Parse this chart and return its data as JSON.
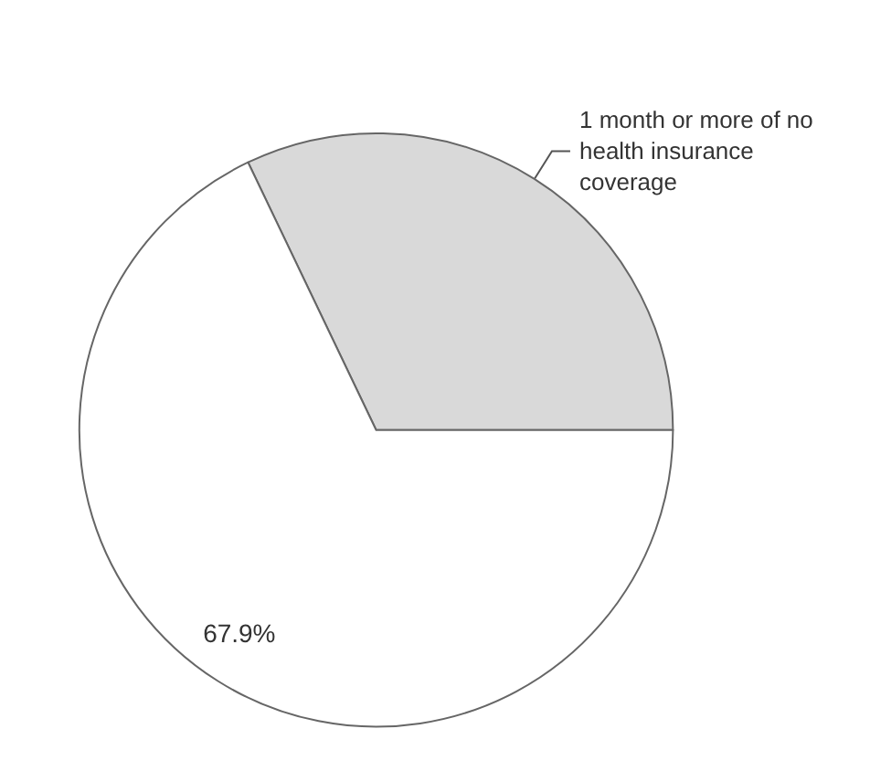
{
  "chart_data": {
    "type": "pie",
    "categories": [
      "1 month or more of no health insurance coverage",
      null
    ],
    "values": [
      32.1,
      67.9
    ],
    "colors": [
      "#d9d9d9",
      "#ffffff"
    ],
    "value_labels": [
      null,
      "67.9%"
    ],
    "legend": false
  }
}
